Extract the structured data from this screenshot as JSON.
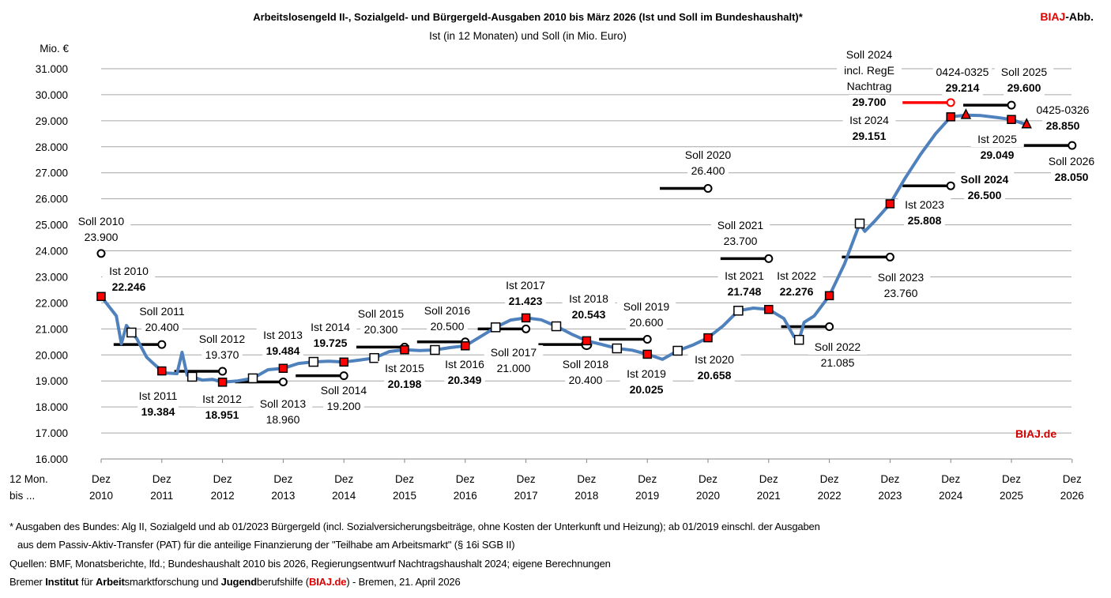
{
  "header": {
    "title": "Arbeitslosengeld II-, Sozialgeld- und Bürgergeld-Ausgaben 2010 bis März 2026 (Ist und Soll im Bundeshaushalt)*",
    "subtitle": "Ist (in 12 Monaten) und Soll (in Mio. Euro)",
    "brand_red": "BIAJ",
    "brand_rest": "-Abb."
  },
  "watermark": "BIAJ.de",
  "footer": {
    "note1": "* Ausgaben des Bundes: Alg II, Sozialgeld und ab 01/2023 Bürgergeld (incl. Sozialversicherungsbeiträge, ohne Kosten der Unterkunft und Heizung); ab 01/2019 einschl. der Ausgaben",
    "note2": "aus dem Passiv-Aktiv-Transfer (PAT) für die anteilige Finanzierung der \"Teilhabe am Arbeitsmarkt\" (§ 16i SGB II)",
    "sources": "Quellen: BMF, Monatsberichte, lfd.; Bundeshaushalt 2010 bis 2026, Regierungsentwurf Nachtragshaushalt 2024; eigene Berechnungen",
    "credit": {
      "p1": "Bremer ",
      "b1": "Institut",
      "p2": " für ",
      "b2": "Arbeit",
      "p3": "smarktforschung und ",
      "b3": "Jugend",
      "p4": "berufshilfe (",
      "r1": "BIAJ.de",
      "p5": ") - Bremen, 21. April 2026"
    }
  },
  "colors": {
    "line": "#4f81bd",
    "ist_marker": "#ff0000",
    "soll_line": "#000000",
    "soll_nachtrag": "#ff0000",
    "grid": "#a6a6a6",
    "brand": "#e00000"
  },
  "chart_data": {
    "type": "line",
    "title": "Arbeitslosengeld II-, Sozialgeld- und Bürgergeld-Ausgaben 2010 bis März 2026 (Ist und Soll im Bundeshaushalt)*",
    "subtitle": "Ist (in 12 Monaten) und Soll (in Mio. Euro)",
    "ylabel": "Mio. €",
    "xlabel": "12 Mon. bis ...",
    "xlabel_lines": [
      "12 Mon.",
      "bis ..."
    ],
    "ylim": [
      16000,
      31000
    ],
    "yticks": [
      "16.000",
      "17.000",
      "18.000",
      "19.000",
      "20.000",
      "21.000",
      "22.000",
      "23.000",
      "24.000",
      "25.000",
      "26.000",
      "27.000",
      "28.000",
      "29.000",
      "30.000",
      "31.000"
    ],
    "xticks": [
      [
        "Dez",
        "2010"
      ],
      [
        "Dez",
        "2011"
      ],
      [
        "Dez",
        "2012"
      ],
      [
        "Dez",
        "2013"
      ],
      [
        "Dez",
        "2014"
      ],
      [
        "Dez",
        "2015"
      ],
      [
        "Dez",
        "2016"
      ],
      [
        "Dez",
        "2017"
      ],
      [
        "Dez",
        "2018"
      ],
      [
        "Dez",
        "2019"
      ],
      [
        "Dez",
        "2020"
      ],
      [
        "Dez",
        "2021"
      ],
      [
        "Dez",
        "2022"
      ],
      [
        "Dez",
        "2023"
      ],
      [
        "Dez",
        "2024"
      ],
      [
        "Dez",
        "2025"
      ],
      [
        "Dez",
        "2026"
      ]
    ],
    "grid": true,
    "ist_series": [
      [
        "2010-12",
        22246
      ],
      [
        "2011-03",
        21500
      ],
      [
        "2011-04",
        20430
      ],
      [
        "2011-05",
        21130
      ],
      [
        "2011-06",
        20860
      ],
      [
        "2011-07",
        20640
      ],
      [
        "2011-09",
        19910
      ],
      [
        "2011-10",
        19730
      ],
      [
        "2011-12",
        19384
      ],
      [
        "2012-01",
        19300
      ],
      [
        "2012-03",
        19280
      ],
      [
        "2012-04",
        20100
      ],
      [
        "2012-05",
        19220
      ],
      [
        "2012-06",
        19160
      ],
      [
        "2012-08",
        19030
      ],
      [
        "2012-10",
        19060
      ],
      [
        "2012-12",
        18951
      ],
      [
        "2013-03",
        19000
      ],
      [
        "2013-06",
        19100
      ],
      [
        "2013-09",
        19430
      ],
      [
        "2013-12",
        19484
      ],
      [
        "2014-03",
        19670
      ],
      [
        "2014-06",
        19733
      ],
      [
        "2014-09",
        19760
      ],
      [
        "2014-12",
        19725
      ],
      [
        "2015-03",
        19800
      ],
      [
        "2015-06",
        19880
      ],
      [
        "2015-09",
        20130
      ],
      [
        "2015-12",
        20198
      ],
      [
        "2016-03",
        20170
      ],
      [
        "2016-06",
        20190
      ],
      [
        "2016-09",
        20280
      ],
      [
        "2016-12",
        20349
      ],
      [
        "2017-03",
        20700
      ],
      [
        "2017-06",
        21060
      ],
      [
        "2017-09",
        21340
      ],
      [
        "2017-12",
        21423
      ],
      [
        "2018-03",
        21350
      ],
      [
        "2018-06",
        21100
      ],
      [
        "2018-09",
        20800
      ],
      [
        "2018-12",
        20543
      ],
      [
        "2019-03",
        20400
      ],
      [
        "2019-06",
        20250
      ],
      [
        "2019-09",
        20180
      ],
      [
        "2019-12",
        20025
      ],
      [
        "2020-03",
        19830
      ],
      [
        "2020-06",
        20160
      ],
      [
        "2020-09",
        20380
      ],
      [
        "2020-12",
        20658
      ],
      [
        "2021-03",
        21120
      ],
      [
        "2021-06",
        21700
      ],
      [
        "2021-09",
        21800
      ],
      [
        "2021-12",
        21748
      ],
      [
        "2022-03",
        21400
      ],
      [
        "2022-05",
        20700
      ],
      [
        "2022-06",
        20580
      ],
      [
        "2022-07",
        21250
      ],
      [
        "2022-09",
        21500
      ],
      [
        "2022-12",
        22276
      ],
      [
        "2023-03",
        23500
      ],
      [
        "2023-06",
        25050
      ],
      [
        "2023-07",
        24750
      ],
      [
        "2023-09",
        25150
      ],
      [
        "2023-12",
        25808
      ],
      [
        "2024-03",
        26800
      ],
      [
        "2024-06",
        27700
      ],
      [
        "2024-09",
        28500
      ],
      [
        "2024-12",
        29151
      ],
      [
        "2025-03",
        29214
      ],
      [
        "2025-06",
        29200
      ],
      [
        "2025-09",
        29130
      ],
      [
        "2025-12",
        29049
      ],
      [
        "2026-03",
        28850
      ]
    ],
    "ist_dez_markers": [
      "2010-12",
      "2011-12",
      "2012-12",
      "2013-12",
      "2014-12",
      "2015-12",
      "2016-12",
      "2017-12",
      "2018-12",
      "2019-12",
      "2020-12",
      "2021-12",
      "2022-12",
      "2023-12",
      "2024-12",
      "2025-12"
    ],
    "ist_jun_markers": [
      "2011-06",
      "2012-06",
      "2013-06",
      "2014-06",
      "2015-06",
      "2016-06",
      "2017-06",
      "2018-06",
      "2019-06",
      "2020-06",
      "2021-06",
      "2022-06",
      "2023-06"
    ],
    "ist_triangle_markers": [
      "2025-03",
      "2026-03"
    ],
    "soll": [
      {
        "year": 2010,
        "value": 23900
      },
      {
        "year": 2011,
        "value": 20400
      },
      {
        "year": 2012,
        "value": 19370
      },
      {
        "year": 2013,
        "value": 18960
      },
      {
        "year": 2014,
        "value": 19200
      },
      {
        "year": 2015,
        "value": 20300
      },
      {
        "year": 2016,
        "value": 20500
      },
      {
        "year": 2017,
        "value": 21000
      },
      {
        "year": 2018,
        "value": 20400
      },
      {
        "year": 2019,
        "value": 20600
      },
      {
        "year": 2020,
        "value": 26400
      },
      {
        "year": 2021,
        "value": 23700
      },
      {
        "year": 2022,
        "value": 21085
      },
      {
        "year": 2023,
        "value": 23760
      },
      {
        "year": 2024,
        "value": 26500
      },
      {
        "year": 2024,
        "value": 29700,
        "variant": "incl. RegE Nachtrag"
      },
      {
        "year": 2025,
        "value": 29600
      },
      {
        "year": 2026,
        "value": 28050
      }
    ],
    "annotations": [
      {
        "lines": [
          "Soll 2010",
          "23.900"
        ],
        "bold": [
          false,
          false
        ]
      },
      {
        "lines": [
          "Ist 2010",
          "22.246"
        ],
        "bold": [
          false,
          true
        ]
      },
      {
        "lines": [
          "Soll 2011",
          "20.400"
        ],
        "bold": [
          false,
          false
        ]
      },
      {
        "lines": [
          "Ist 2011",
          "19.384"
        ],
        "bold": [
          false,
          true
        ]
      },
      {
        "lines": [
          "Soll 2012",
          "19.370"
        ],
        "bold": [
          false,
          false
        ]
      },
      {
        "lines": [
          "Ist 2012",
          "18.951"
        ],
        "bold": [
          false,
          true
        ]
      },
      {
        "lines": [
          "Ist 2013",
          "19.484"
        ],
        "bold": [
          false,
          true
        ]
      },
      {
        "lines": [
          "Soll 2013",
          "18.960"
        ],
        "bold": [
          false,
          false
        ]
      },
      {
        "lines": [
          "Ist 2014",
          "19.725"
        ],
        "bold": [
          false,
          true
        ]
      },
      {
        "lines": [
          "Soll 2014",
          "19.200"
        ],
        "bold": [
          false,
          false
        ]
      },
      {
        "lines": [
          "Soll 2015",
          "20.300"
        ],
        "bold": [
          false,
          false
        ]
      },
      {
        "lines": [
          "Ist 2015",
          "20.198"
        ],
        "bold": [
          false,
          true
        ]
      },
      {
        "lines": [
          "Soll 2016",
          "20.500"
        ],
        "bold": [
          false,
          false
        ]
      },
      {
        "lines": [
          "Ist 2016",
          "20.349"
        ],
        "bold": [
          false,
          true
        ]
      },
      {
        "lines": [
          "Ist 2017",
          "21.423"
        ],
        "bold": [
          false,
          true
        ]
      },
      {
        "lines": [
          "Soll 2017",
          "21.000"
        ],
        "bold": [
          false,
          false
        ]
      },
      {
        "lines": [
          "Ist 2018",
          "20.543"
        ],
        "bold": [
          false,
          true
        ]
      },
      {
        "lines": [
          "Soll 2018",
          "20.400"
        ],
        "bold": [
          false,
          false
        ]
      },
      {
        "lines": [
          "Soll 2019",
          "20.600"
        ],
        "bold": [
          false,
          false
        ]
      },
      {
        "lines": [
          "Ist 2019",
          "20.025"
        ],
        "bold": [
          false,
          true
        ]
      },
      {
        "lines": [
          "Soll 2020",
          "26.400"
        ],
        "bold": [
          false,
          false
        ]
      },
      {
        "lines": [
          "Ist 2020",
          "20.658"
        ],
        "bold": [
          false,
          true
        ]
      },
      {
        "lines": [
          "Soll 2021",
          "23.700"
        ],
        "bold": [
          false,
          false
        ]
      },
      {
        "lines": [
          "Ist 2021",
          "21.748"
        ],
        "bold": [
          false,
          true
        ]
      },
      {
        "lines": [
          "Ist 2022",
          "22.276"
        ],
        "bold": [
          false,
          true
        ]
      },
      {
        "lines": [
          "Soll 2022",
          "21.085"
        ],
        "bold": [
          false,
          false
        ]
      },
      {
        "lines": [
          "Soll 2023",
          "23.760"
        ],
        "bold": [
          false,
          false
        ]
      },
      {
        "lines": [
          "Ist 2023",
          "25.808"
        ],
        "bold": [
          false,
          true
        ]
      },
      {
        "lines": [
          "Soll 2024",
          "26.500"
        ],
        "bold": [
          true,
          true
        ]
      },
      {
        "lines": [
          "Soll 2024",
          "incl. RegE",
          "Nachtrag",
          "29.700"
        ],
        "bold": [
          false,
          false,
          false,
          true
        ]
      },
      {
        "lines": [
          "Ist 2024",
          "29.151"
        ],
        "bold": [
          false,
          true
        ]
      },
      {
        "lines": [
          "0424-0325",
          "29.214"
        ],
        "bold": [
          false,
          true
        ]
      },
      {
        "lines": [
          "Soll 2025",
          "29.600"
        ],
        "bold": [
          false,
          true
        ]
      },
      {
        "lines": [
          "0425-0326",
          "28.850"
        ],
        "bold": [
          false,
          true
        ]
      },
      {
        "lines": [
          "Ist 2025",
          "29.049"
        ],
        "bold": [
          false,
          true
        ]
      },
      {
        "lines": [
          "Soll 2026",
          "28.050"
        ],
        "bold": [
          false,
          true
        ]
      }
    ]
  }
}
